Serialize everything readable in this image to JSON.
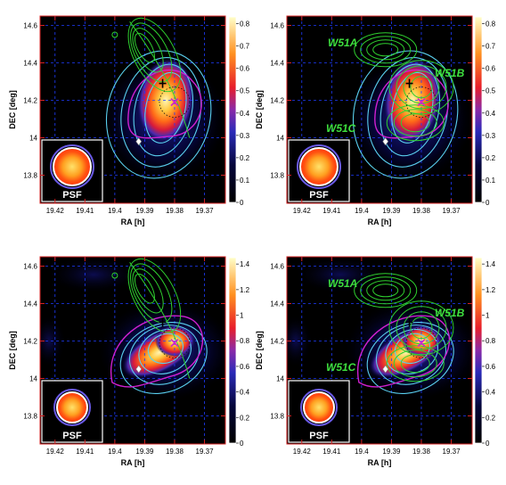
{
  "figure": {
    "panels": [
      {
        "id": "top-left",
        "ylabel": "DEC [deg]",
        "xlabel": "RA [h]",
        "x_ticks": [
          "19.42",
          "19.41",
          "19.4",
          "19.39",
          "19.38",
          "19.37"
        ],
        "y_ticks": [
          "14.6",
          "14.4",
          "14.2",
          "14",
          "13.8"
        ],
        "colorbar_ticks": [
          "0.8",
          "0.7",
          "0.6",
          "0.5",
          "0.4",
          "0.3",
          "0.2",
          "0.1",
          "0"
        ],
        "psf_label": "PSF",
        "region_labels": []
      },
      {
        "id": "top-right",
        "ylabel": "DEC [deg]",
        "xlabel": "RA [h]",
        "x_ticks": [
          "19.42",
          "19.41",
          "19.4",
          "19.39",
          "19.38",
          "19.37"
        ],
        "y_ticks": [
          "14.6",
          "14.4",
          "14.2",
          "14",
          "13.8"
        ],
        "colorbar_ticks": [
          "0.8",
          "0.7",
          "0.6",
          "0.5",
          "0.4",
          "0.3",
          "0.2",
          "0.1",
          "0"
        ],
        "psf_label": "PSF",
        "region_labels": [
          "W51A",
          "W51B",
          "W51C"
        ]
      },
      {
        "id": "bottom-left",
        "ylabel": "DEC [deg]",
        "xlabel": "RA [h]",
        "x_ticks": [
          "19.42",
          "19.41",
          "19.4",
          "19.39",
          "19.38",
          "19.37"
        ],
        "y_ticks": [
          "14.6",
          "14.4",
          "14.2",
          "14",
          "13.8"
        ],
        "colorbar_ticks": [
          "1.4",
          "1.2",
          "1",
          "0.8",
          "0.6",
          "0.4",
          "0.2",
          "0"
        ],
        "psf_label": "PSF",
        "region_labels": []
      },
      {
        "id": "bottom-right",
        "ylabel": "DEC [deg]",
        "xlabel": "RA [h]",
        "x_ticks": [
          "19.42",
          "19.41",
          "19.4",
          "19.39",
          "19.38",
          "19.37"
        ],
        "y_ticks": [
          "14.6",
          "14.4",
          "14.2",
          "14",
          "13.8"
        ],
        "colorbar_ticks": [
          "1.4",
          "1.2",
          "1",
          "0.8",
          "0.6",
          "0.4",
          "0.2",
          "0"
        ],
        "psf_label": "PSF",
        "region_labels": [
          "W51A",
          "W51B",
          "W51C"
        ]
      }
    ]
  },
  "chart_data": [
    {
      "type": "heatmap",
      "xlabel": "RA [h]",
      "ylabel": "DEC [deg]",
      "xlim": [
        19.425,
        19.363
      ],
      "ylim": [
        13.65,
        14.65
      ],
      "x_ticks": [
        19.42,
        19.41,
        19.4,
        19.39,
        19.38,
        19.37
      ],
      "y_ticks": [
        14.6,
        14.4,
        14.2,
        14.0,
        13.8
      ],
      "colorbar_range": [
        0,
        0.83
      ],
      "colorbar_ticks": [
        0.8,
        0.7,
        0.6,
        0.5,
        0.4,
        0.3,
        0.2,
        0.1,
        0
      ],
      "grid": true,
      "peak": {
        "ra": 19.383,
        "dec": 14.22
      },
      "markers": {
        "plus": {
          "ra": 19.384,
          "dec": 14.29
        },
        "cross": {
          "ra": 19.38,
          "dec": 14.19
        },
        "diamond": {
          "ra": 19.392,
          "dec": 13.98
        }
      }
    },
    {
      "type": "heatmap",
      "xlabel": "RA [h]",
      "ylabel": "DEC [deg]",
      "xlim": [
        19.425,
        19.363
      ],
      "ylim": [
        13.65,
        14.65
      ],
      "x_ticks": [
        19.42,
        19.41,
        19.4,
        19.39,
        19.38,
        19.37
      ],
      "y_ticks": [
        14.6,
        14.4,
        14.2,
        14.0,
        13.8
      ],
      "colorbar_range": [
        0,
        0.83
      ],
      "colorbar_ticks": [
        0.8,
        0.7,
        0.6,
        0.5,
        0.4,
        0.3,
        0.2,
        0.1,
        0
      ],
      "grid": true,
      "annotations": [
        "W51A",
        "W51B",
        "W51C"
      ],
      "peak": {
        "ra": 19.383,
        "dec": 14.22
      },
      "markers": {
        "plus": {
          "ra": 19.384,
          "dec": 14.29
        },
        "cross": {
          "ra": 19.38,
          "dec": 14.19
        },
        "diamond": {
          "ra": 19.392,
          "dec": 13.98
        }
      }
    },
    {
      "type": "heatmap",
      "xlabel": "RA [h]",
      "ylabel": "DEC [deg]",
      "xlim": [
        19.425,
        19.363
      ],
      "ylim": [
        13.65,
        14.65
      ],
      "x_ticks": [
        19.42,
        19.41,
        19.4,
        19.39,
        19.38,
        19.37
      ],
      "y_ticks": [
        14.6,
        14.4,
        14.2,
        14.0,
        13.8
      ],
      "colorbar_range": [
        0,
        1.45
      ],
      "colorbar_ticks": [
        1.4,
        1.2,
        1.0,
        0.8,
        0.6,
        0.4,
        0.2,
        0
      ],
      "grid": true,
      "peaks": [
        {
          "ra": 19.383,
          "dec": 14.2
        },
        {
          "ra": 19.39,
          "dec": 14.07
        }
      ],
      "markers": {
        "plus": {
          "ra": 19.384,
          "dec": 14.3
        },
        "cross": {
          "ra": 19.38,
          "dec": 14.19
        },
        "diamond": {
          "ra": 19.392,
          "dec": 14.05
        }
      }
    },
    {
      "type": "heatmap",
      "xlabel": "RA [h]",
      "ylabel": "DEC [deg]",
      "xlim": [
        19.425,
        19.363
      ],
      "ylim": [
        13.65,
        14.65
      ],
      "x_ticks": [
        19.42,
        19.41,
        19.4,
        19.39,
        19.38,
        19.37
      ],
      "y_ticks": [
        14.6,
        14.4,
        14.2,
        14.0,
        13.8
      ],
      "colorbar_range": [
        0,
        1.45
      ],
      "colorbar_ticks": [
        1.4,
        1.2,
        1.0,
        0.8,
        0.6,
        0.4,
        0.2,
        0
      ],
      "grid": true,
      "annotations": [
        "W51A",
        "W51B",
        "W51C"
      ],
      "peaks": [
        {
          "ra": 19.383,
          "dec": 14.2
        },
        {
          "ra": 19.39,
          "dec": 14.07
        }
      ],
      "markers": {
        "plus": {
          "ra": 19.384,
          "dec": 14.3
        },
        "cross": {
          "ra": 19.38,
          "dec": 14.19
        },
        "diamond": {
          "ra": 19.392,
          "dec": 14.05
        }
      }
    }
  ],
  "colors": {
    "frame": "#d42222",
    "grid": "#1f3cff",
    "tick_labels": "#f2f200",
    "green_contours": "#2fd12f",
    "cyan_contours": "#5ad0ee",
    "magenta_contour": "#d020d0",
    "region_labels": "#3ee03e",
    "psf_ring": "#ffffff"
  }
}
